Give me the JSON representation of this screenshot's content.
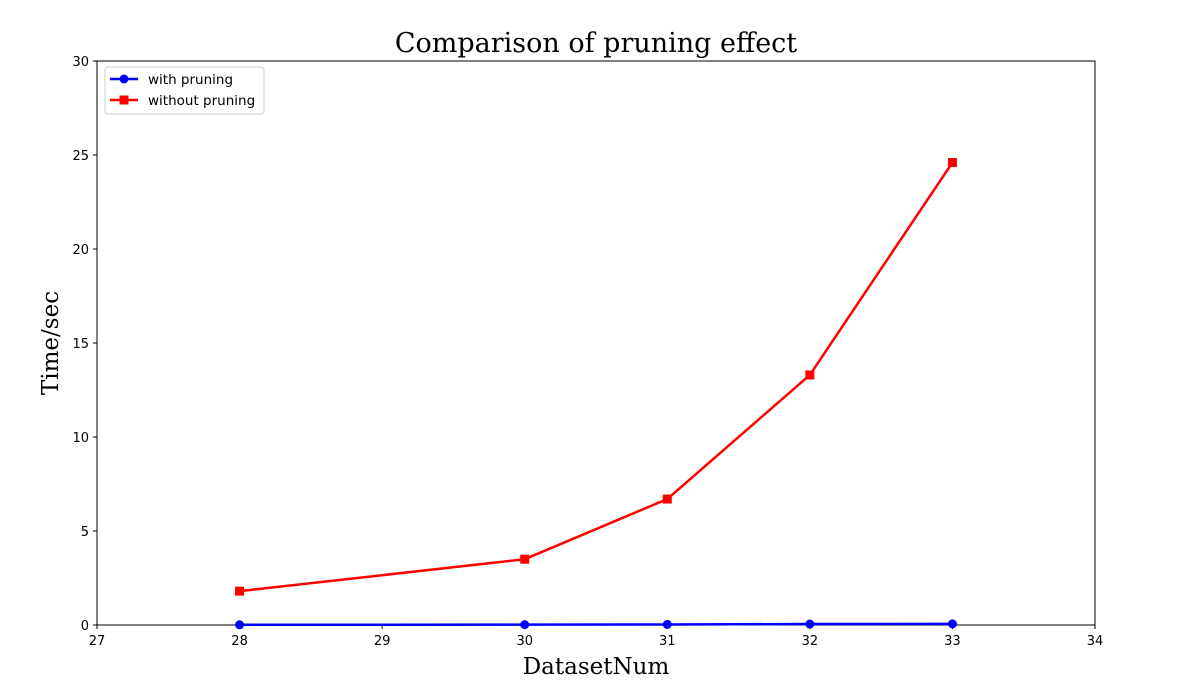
{
  "chart_data": {
    "type": "line",
    "title": "Comparison of pruning effect",
    "xlabel": "DatasetNum",
    "ylabel": "Time/sec",
    "xlim": [
      27,
      34
    ],
    "ylim": [
      0,
      30
    ],
    "xticks": [
      "27",
      "28",
      "29",
      "30",
      "31",
      "32",
      "33",
      "34"
    ],
    "yticks": [
      "0",
      "5",
      "10",
      "15",
      "20",
      "25",
      "30"
    ],
    "grid": false,
    "legend_position": "top-left",
    "series": [
      {
        "name": "with pruning",
        "color": "#0000ff",
        "marker": "circle",
        "x": [
          28,
          30,
          31,
          32,
          33
        ],
        "y": [
          0.01,
          0.02,
          0.03,
          0.05,
          0.06
        ]
      },
      {
        "name": "without pruning",
        "color": "#ff0000",
        "marker": "square",
        "x": [
          28,
          30,
          31,
          32,
          33
        ],
        "y": [
          1.8,
          3.5,
          6.7,
          13.3,
          24.6
        ]
      }
    ]
  }
}
